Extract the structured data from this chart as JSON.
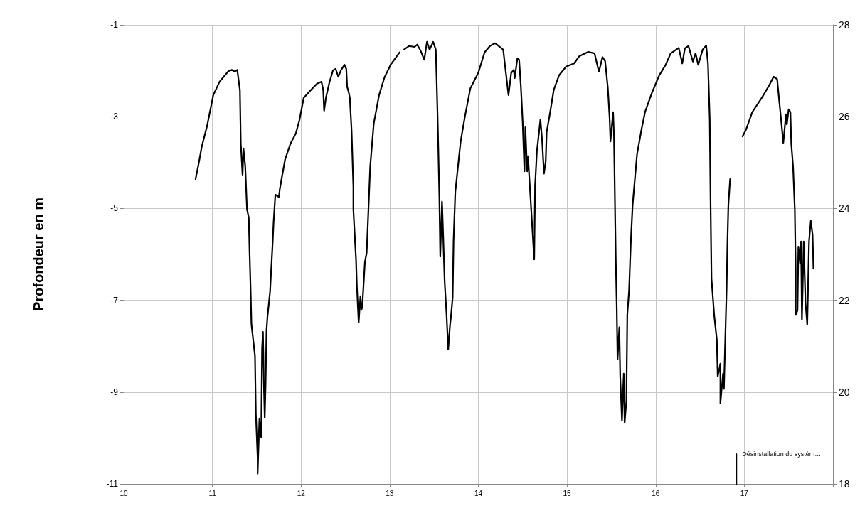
{
  "chart_data": {
    "type": "line",
    "ylabel": "Profondeur en m",
    "x": [
      10.81,
      10.85,
      10.88,
      10.94,
      11.01,
      11.08,
      11.18,
      11.22,
      11.25,
      11.28,
      11.31,
      11.32,
      11.34,
      11.35,
      11.37,
      11.39,
      11.41,
      11.42,
      11.43,
      11.44,
      11.48,
      11.49,
      11.51,
      11.51,
      11.53,
      11.55,
      11.56,
      11.57,
      11.58,
      11.59,
      11.6,
      11.61,
      11.62,
      11.65,
      11.68,
      11.69,
      11.71,
      11.75,
      11.76,
      11.78,
      11.82,
      11.88,
      11.94,
      11.98,
      12.03,
      12.11,
      12.18,
      12.23,
      12.25,
      12.26,
      12.28,
      12.32,
      12.36,
      12.39,
      12.42,
      12.45,
      12.49,
      12.51,
      12.52,
      12.54,
      12.55,
      12.57,
      12.59,
      12.59,
      12.62,
      12.63,
      12.65,
      12.67,
      12.68,
      12.69,
      12.72,
      12.74,
      12.78,
      12.82,
      12.88,
      12.94,
      13.01,
      13.07,
      13.11,
      13.13,
      13.16,
      13.22,
      13.28,
      13.31,
      13.35,
      13.39,
      13.42,
      13.45,
      13.49,
      13.52,
      13.54,
      13.56,
      13.57,
      13.59,
      13.6,
      13.62,
      13.64,
      13.66,
      13.68,
      13.69,
      13.71,
      13.72,
      13.74,
      13.8,
      13.85,
      13.91,
      14,
      14.07,
      14.13,
      14.19,
      14.28,
      14.32,
      14.34,
      14.37,
      14.4,
      14.41,
      14.44,
      14.46,
      14.48,
      14.5,
      14.52,
      14.53,
      14.55,
      14.56,
      14.58,
      14.6,
      14.63,
      14.64,
      14.66,
      14.7,
      14.72,
      14.74,
      14.76,
      14.77,
      14.81,
      14.85,
      14.91,
      14.99,
      15.08,
      15.14,
      15.24,
      15.31,
      15.36,
      15.4,
      15.43,
      15.46,
      15.48,
      15.49,
      15.52,
      15.53,
      15.55,
      15.56,
      15.57,
      15.59,
      15.6,
      15.62,
      15.63,
      15.64,
      15.65,
      15.67,
      15.68,
      15.7,
      15.72,
      15.74,
      15.79,
      15.84,
      15.88,
      15.96,
      16.04,
      16.11,
      16.17,
      16.26,
      16.3,
      16.33,
      16.37,
      16.42,
      16.45,
      16.48,
      16.53,
      16.57,
      16.59,
      16.61,
      16.62,
      16.63,
      16.66,
      16.69,
      16.7,
      16.73,
      16.73,
      16.76,
      16.77,
      16.8,
      16.81,
      16.82,
      16.84,
      16.9,
      16.98,
      17.02,
      17.09,
      17.2,
      17.28,
      17.33,
      17.37,
      17.39,
      17.42,
      17.44,
      17.47,
      17.48,
      17.5,
      17.52,
      17.53,
      17.55,
      17.57,
      17.58,
      17.58,
      17.6,
      17.61,
      17.63,
      17.64,
      17.65,
      17.67,
      17.69,
      17.71,
      17.73,
      17.75,
      17.77,
      17.78
    ],
    "series": [
      {
        "color": "#000000",
        "values": [
          -4.36,
          -3.97,
          -3.65,
          -3.2,
          -2.53,
          -2.24,
          -2.01,
          -1.98,
          -2.02,
          -1.98,
          -2.42,
          -3.59,
          -4.28,
          -3.69,
          -4.08,
          -5.02,
          -5.2,
          -6.02,
          -6.71,
          -7.52,
          -8.21,
          -9.48,
          -10.43,
          -10.78,
          -9.59,
          -9.98,
          -8.04,
          -7.69,
          -8.82,
          -9.56,
          -8.82,
          -7.66,
          -7.38,
          -6.82,
          -5.72,
          -5.3,
          -4.7,
          -4.75,
          -4.58,
          -4.36,
          -3.93,
          -3.59,
          -3.37,
          -3.09,
          -2.59,
          -2.42,
          -2.28,
          -2.24,
          -2.42,
          -2.87,
          -2.59,
          -2.25,
          -1.99,
          -1.96,
          -2.13,
          -1.99,
          -1.87,
          -1.96,
          -2.35,
          -2.49,
          -2.59,
          -3.31,
          -4.53,
          -5.02,
          -6.11,
          -6.71,
          -7.49,
          -6.91,
          -7.21,
          -7.16,
          -6.17,
          -5.97,
          -4.08,
          -3.15,
          -2.53,
          -2.15,
          -1.87,
          -1.71,
          -1.6,
          null,
          -1.54,
          -1.46,
          -1.48,
          -1.43,
          -1.57,
          -1.76,
          -1.37,
          -1.54,
          -1.37,
          -1.54,
          -2.98,
          -4.75,
          -6.05,
          -4.85,
          -5.41,
          -6.6,
          -7.27,
          -8.07,
          -7.55,
          -7.38,
          -6.94,
          -5.72,
          -4.64,
          -3.54,
          -2.98,
          -2.38,
          -2.04,
          -1.6,
          -1.46,
          -1.4,
          -1.54,
          -2.21,
          -2.53,
          -2.05,
          -1.98,
          -2.16,
          -1.73,
          -1.76,
          -2.36,
          -3.12,
          -4.19,
          -3.23,
          -4.19,
          -3.86,
          -4.5,
          -5.15,
          -6.11,
          -4.5,
          -3.76,
          -3.06,
          -3.54,
          -4.24,
          -3.97,
          -3.34,
          -2.9,
          -2.42,
          -2.1,
          -1.91,
          -1.84,
          -1.68,
          -1.59,
          -1.62,
          -2.02,
          -1.7,
          -1.79,
          -2.36,
          -3.01,
          -3.54,
          -2.9,
          -3.43,
          -6.11,
          -7.05,
          -8.29,
          -7.59,
          -8.66,
          -9.62,
          -9.08,
          -8.6,
          -9.67,
          -9.19,
          -7.32,
          -6.79,
          -5.72,
          -4.93,
          -3.82,
          -3.28,
          -2.9,
          -2.47,
          -2.1,
          -1.88,
          -1.62,
          -1.5,
          -1.84,
          -1.51,
          -1.46,
          -1.8,
          -1.62,
          -1.87,
          -1.54,
          -1.45,
          -1.84,
          -3.06,
          -4.98,
          -6.53,
          -7.32,
          -7.86,
          -8.66,
          -8.38,
          -9.25,
          -8.6,
          -8.93,
          -6.79,
          -5.72,
          -4.93,
          -4.36,
          null,
          -3.43,
          -3.28,
          -2.9,
          -2.58,
          -2.32,
          -2.13,
          -2.18,
          -2.58,
          -3.17,
          -3.57,
          -2.95,
          -3.17,
          -2.84,
          -2.9,
          -3.6,
          -4.08,
          -5.04,
          -6.36,
          -7.32,
          -7.22,
          -5.83,
          -6.2,
          -5.72,
          -7.42,
          -5.72,
          -7.05,
          -7.53,
          -5.72,
          -5.27,
          -5.57,
          -6.31
        ]
      },
      {
        "name": "Désinstallation du systèm…",
        "axis": "y2",
        "color": "#000000",
        "x": [
          16.91,
          16.91
        ],
        "values": [
          18,
          18.65
        ]
      }
    ],
    "marker": "none",
    "line_style": "solid",
    "grid": true,
    "xlim": [
      10,
      18
    ],
    "xticks": [
      10,
      11,
      12,
      13,
      14,
      15,
      16,
      17,
      {
        "value": 18,
        "label": null
      }
    ],
    "ylim": [
      -11,
      -1
    ],
    "yticks": [
      -11,
      -9,
      -7,
      -5,
      -3,
      -1
    ],
    "y2lim": [
      18,
      28
    ],
    "y2ticks": [
      18,
      20,
      22,
      24,
      26,
      28
    ]
  }
}
